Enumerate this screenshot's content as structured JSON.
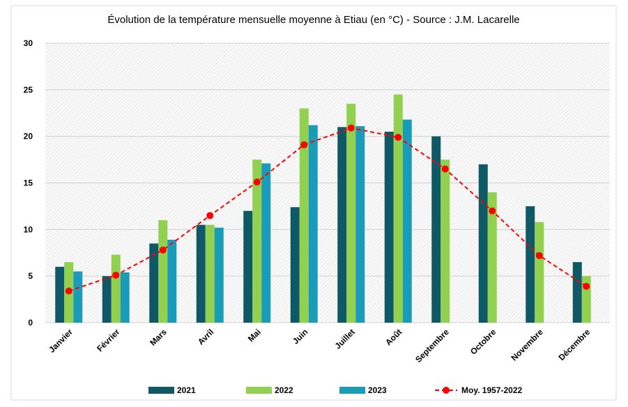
{
  "chart_data": {
    "type": "bar",
    "title": "Évolution de la température mensuelle moyenne à Etiau (en °C) - Source : J.M. Lacarelle",
    "categories": [
      "Janvier",
      "Février",
      "Mars",
      "Avril",
      "Mai",
      "Juin",
      "Juillet",
      "Août",
      "Septembre",
      "Octobre",
      "Novembre",
      "Décembre"
    ],
    "series": [
      {
        "name": "2021",
        "color": "#0f5866",
        "values": [
          6,
          5,
          8.5,
          10.5,
          12,
          12.4,
          21,
          20.5,
          20,
          17,
          12.5,
          6.5
        ]
      },
      {
        "name": "2022",
        "color": "#92d050",
        "values": [
          6.5,
          7.3,
          11,
          10.5,
          17.5,
          23,
          23.5,
          24.5,
          17.5,
          14,
          10.8,
          5
        ]
      },
      {
        "name": "2023",
        "color": "#1a9bb8",
        "values": [
          5.5,
          5.4,
          8.9,
          10.2,
          17.1,
          21.2,
          21.1,
          21.8,
          null,
          null,
          null,
          null
        ]
      },
      {
        "name": "Moy. 1957-2022",
        "color": "#ff0000",
        "type": "line",
        "values": [
          3.4,
          5.1,
          7.8,
          11.5,
          15.1,
          19.1,
          20.9,
          19.9,
          16.5,
          12,
          7.2,
          3.9
        ]
      }
    ],
    "ylim": [
      0,
      30
    ],
    "yticks": [
      0,
      5,
      10,
      15,
      20,
      25,
      30
    ],
    "grid": true,
    "legend": "bottom"
  }
}
